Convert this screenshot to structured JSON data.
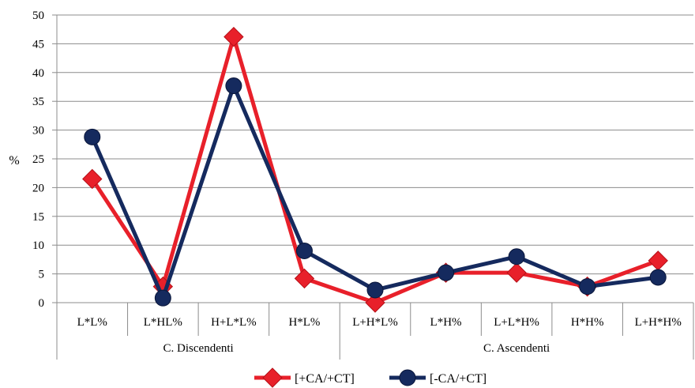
{
  "chart_data": {
    "type": "line",
    "ylabel": "%",
    "ylim": [
      0,
      50
    ],
    "yticks": [
      "0",
      "5",
      "10",
      "15",
      "20",
      "25",
      "30",
      "35",
      "40",
      "45",
      "50"
    ],
    "grid": true,
    "legend_position": "bottom",
    "categories": [
      "L*L%",
      "L*HL%",
      "H+L*L%",
      "H*L%",
      "L+H*L%",
      "L*H%",
      "L+L*H%",
      "H*H%",
      "L+H*H%"
    ],
    "groups": [
      {
        "label": "C. Discendenti",
        "span": 4
      },
      {
        "label": "C. Ascendenti",
        "span": 5
      }
    ],
    "series": [
      {
        "name": "[+CA/+CT]",
        "color": "#e8202a",
        "marker": "diamond",
        "values": [
          21.5,
          2.8,
          46.2,
          4.2,
          0,
          5.2,
          5.2,
          2.8,
          7.3
        ]
      },
      {
        "name": "[-CA/+CT]",
        "color": "#152a5e",
        "marker": "circle",
        "values": [
          28.8,
          0.8,
          37.7,
          9,
          2.2,
          5.2,
          8,
          2.8,
          4.4
        ]
      }
    ]
  }
}
